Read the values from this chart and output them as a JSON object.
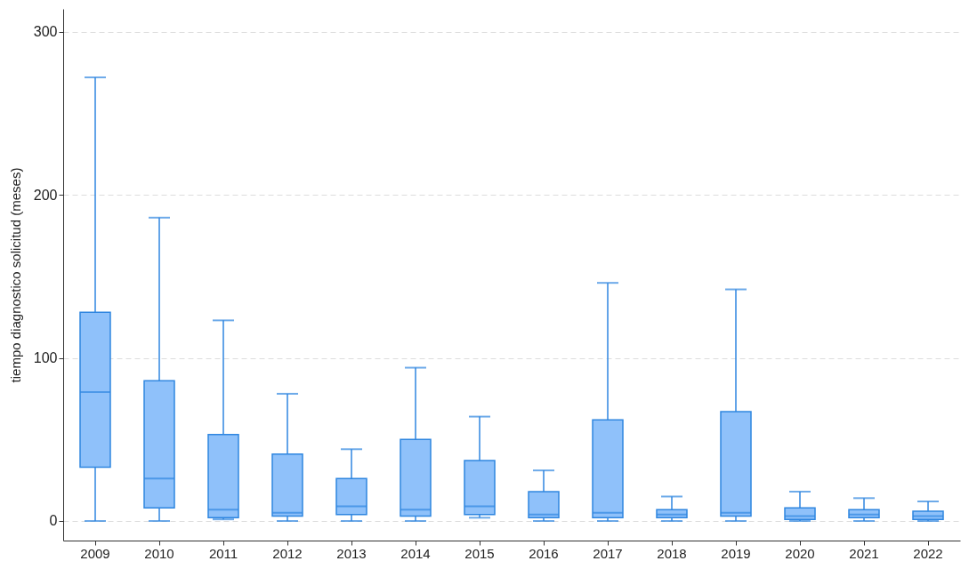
{
  "chart_data": {
    "type": "box",
    "ylabel": "tiempo diagnostico solicitud (meses)",
    "categories": [
      "2009",
      "2010",
      "2011",
      "2012",
      "2013",
      "2014",
      "2015",
      "2016",
      "2017",
      "2018",
      "2019",
      "2020",
      "2021",
      "2022"
    ],
    "series": [
      {
        "color": "#8fc1fa",
        "boxes": [
          {
            "low": 0,
            "q1": 33,
            "median": 79,
            "q3": 128,
            "high": 272
          },
          {
            "low": 0,
            "q1": 8,
            "median": 26,
            "q3": 86,
            "high": 186
          },
          {
            "low": 1,
            "q1": 2,
            "median": 7,
            "q3": 53,
            "high": 123
          },
          {
            "low": 0,
            "q1": 3,
            "median": 5,
            "q3": 41,
            "high": 78
          },
          {
            "low": 0,
            "q1": 4,
            "median": 9,
            "q3": 26,
            "high": 44
          },
          {
            "low": 0,
            "q1": 3,
            "median": 7,
            "q3": 50,
            "high": 94
          },
          {
            "low": 2,
            "q1": 4,
            "median": 9,
            "q3": 37,
            "high": 64
          },
          {
            "low": 0,
            "q1": 2,
            "median": 4,
            "q3": 18,
            "high": 31
          },
          {
            "low": 0,
            "q1": 2,
            "median": 5,
            "q3": 62,
            "high": 146
          },
          {
            "low": 0,
            "q1": 2,
            "median": 4,
            "q3": 7,
            "high": 15
          },
          {
            "low": 0,
            "q1": 3,
            "median": 5,
            "q3": 67,
            "high": 142
          },
          {
            "low": 0,
            "q1": 1,
            "median": 3,
            "q3": 8,
            "high": 18
          },
          {
            "low": 0,
            "q1": 2,
            "median": 4,
            "q3": 7,
            "high": 14
          },
          {
            "low": 0,
            "q1": 1,
            "median": 3,
            "q3": 6,
            "high": 12
          }
        ]
      }
    ],
    "ylim": [
      -12,
      314
    ],
    "yticks": [
      0,
      100,
      200,
      300
    ],
    "grid": "y"
  }
}
